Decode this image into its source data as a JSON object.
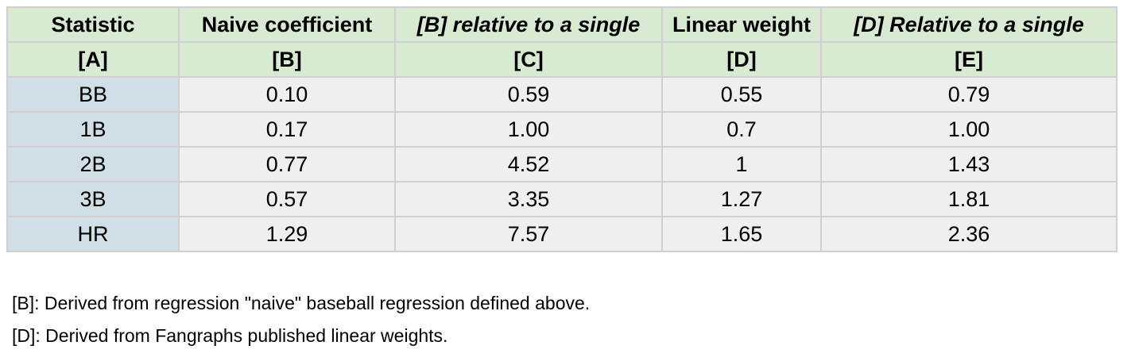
{
  "table": {
    "header_titles": [
      "Statistic",
      "Naive coefficient",
      "[B] relative to a single",
      "Linear weight",
      "[D] Relative to a single"
    ],
    "header_letters": [
      "[A]",
      "[B]",
      "[C]",
      "[D]",
      "[E]"
    ],
    "rows": [
      [
        "BB",
        "0.10",
        "0.59",
        "0.55",
        "0.79"
      ],
      [
        "1B",
        "0.17",
        "1.00",
        "0.7",
        "1.00"
      ],
      [
        "2B",
        "0.77",
        "4.52",
        "1",
        "1.43"
      ],
      [
        "3B",
        "0.57",
        "3.35",
        "1.27",
        "1.81"
      ],
      [
        "HR",
        "1.29",
        "7.57",
        "1.65",
        "2.36"
      ]
    ],
    "colors": {
      "header_bg": "#d9ead3",
      "first_col_bg": "#d0dfe5",
      "cell_bg": "#efefef",
      "border": "#d0d0d0"
    }
  },
  "notes": [
    "[B]: Derived from regression \"naive\" baseball regression defined above.",
    "[D]: Derived from Fangraphs published linear weights."
  ]
}
